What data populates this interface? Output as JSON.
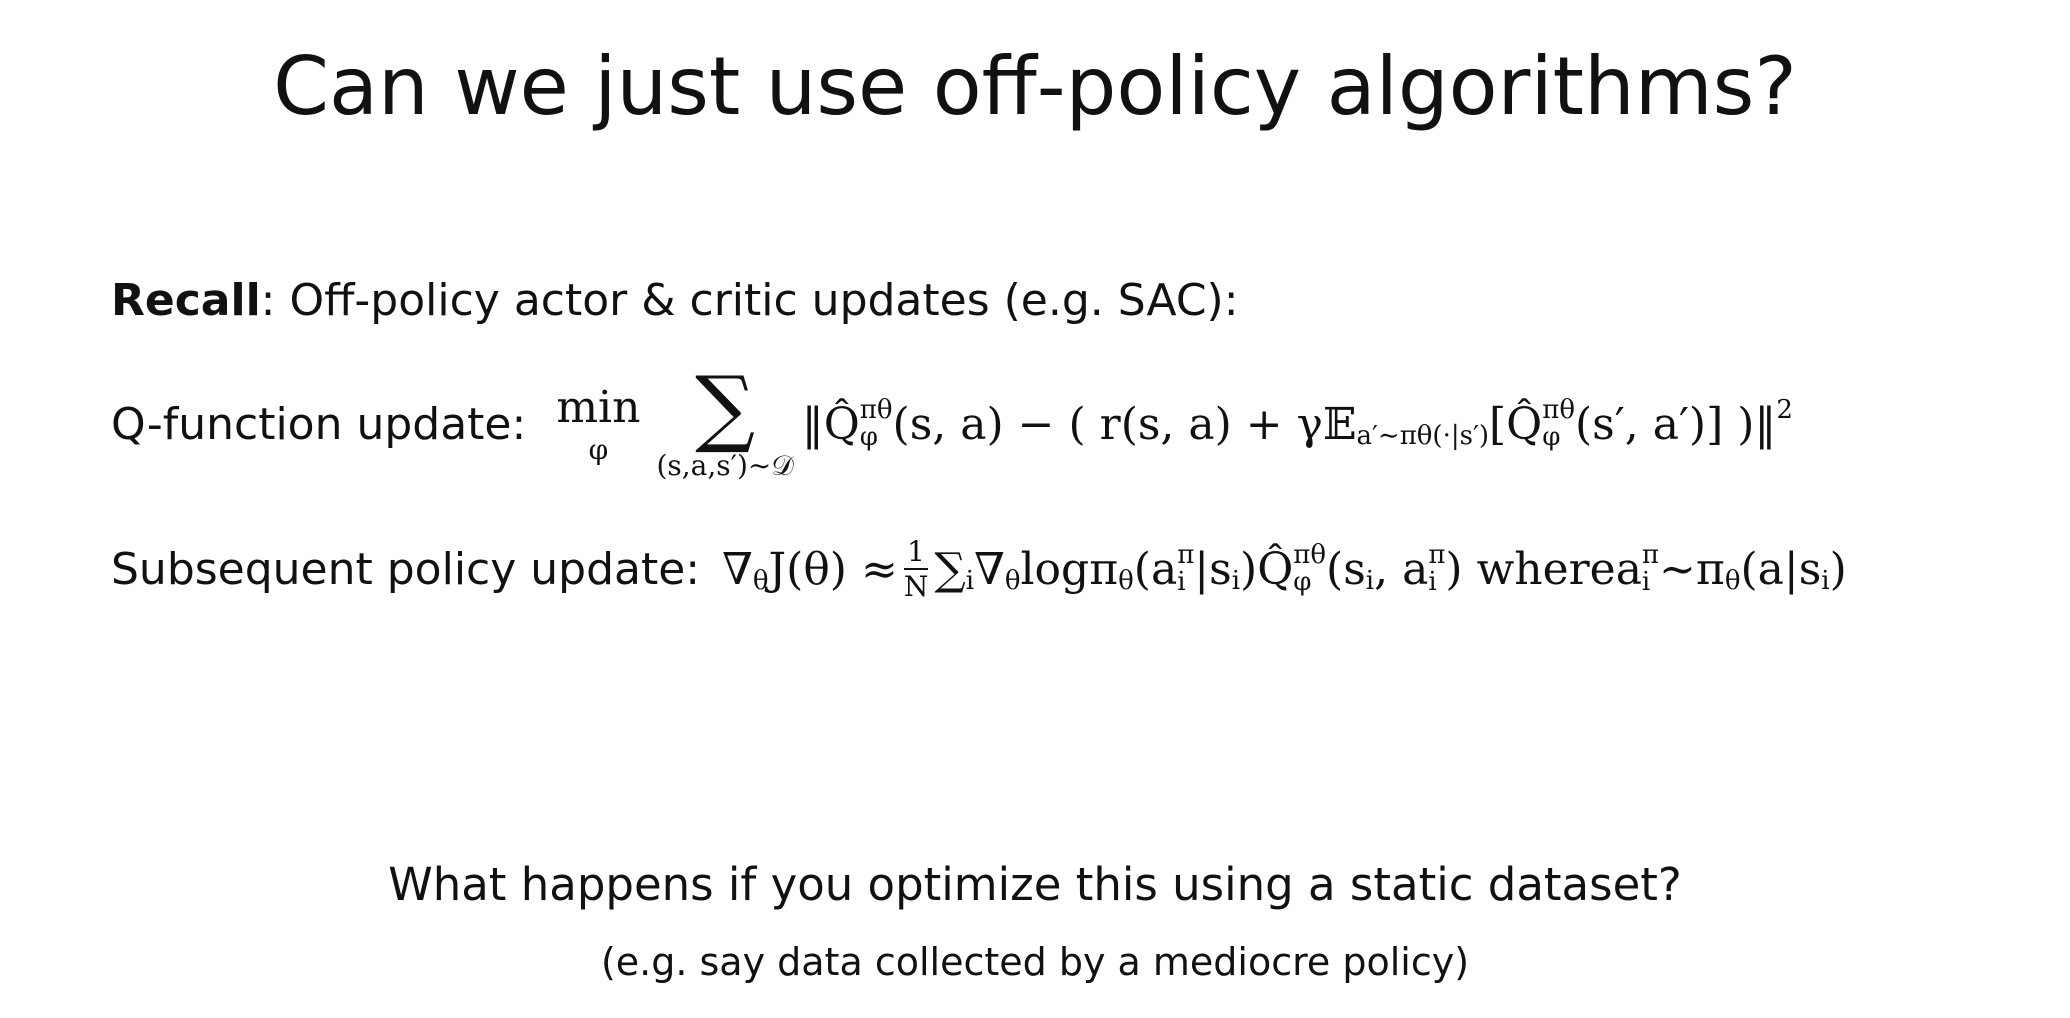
{
  "title": "Can we just use off-policy algorithms?",
  "recall": {
    "bold": "Recall",
    "text": ": Off-policy actor & critic updates (e.g. SAC):"
  },
  "q_update": {
    "label": "Q-function update:",
    "tokens": [
      {
        "op": "min",
        "below": "φ"
      },
      {
        "op": "∑",
        "below": "(s,a,s′)∼𝒟"
      },
      {
        "base": "‖Q̂",
        "sup": "πθ",
        "sub": "φ"
      },
      "(s, a) − ( r(s, a) + γ",
      {
        "base": "𝔼",
        "sub": "a′∼πθ(·|s′)"
      },
      {
        "base": "[Q̂",
        "sup": "πθ",
        "sub": "φ"
      },
      "(s′, a′)] )",
      {
        "base": " ‖",
        "sup": "2"
      }
    ]
  },
  "policy_update": {
    "label": "Subsequent policy update:",
    "tokens": [
      {
        "base": "∇",
        "sub": "θ"
      },
      "J(θ) ≈ ",
      {
        "num": "1",
        "den": "N"
      },
      {
        "base": "∑",
        "sub": "i"
      },
      {
        "base": " ∇",
        "sub": "θ"
      },
      " log ",
      {
        "base": "π",
        "sub": "θ"
      },
      {
        "base": "(a",
        "sup": "π",
        "sub": "i"
      },
      {
        "base": "|s",
        "sub": "i"
      },
      {
        "base": ")Q̂",
        "sup": "πθ",
        "sub": "φ"
      },
      {
        "base": "(s",
        "sub": "i"
      },
      {
        "base": ", a",
        "sup": "π",
        "sub": "i"
      },
      ") where ",
      {
        "base": "a",
        "sup": "π",
        "sub": "i"
      },
      " ∼ ",
      {
        "base": "π",
        "sub": "θ"
      },
      {
        "base": "(a|s",
        "sub": "i"
      },
      ")"
    ]
  },
  "question": "What happens if you optimize this using a static dataset?",
  "note": "(e.g. say data collected by a mediocre policy)"
}
